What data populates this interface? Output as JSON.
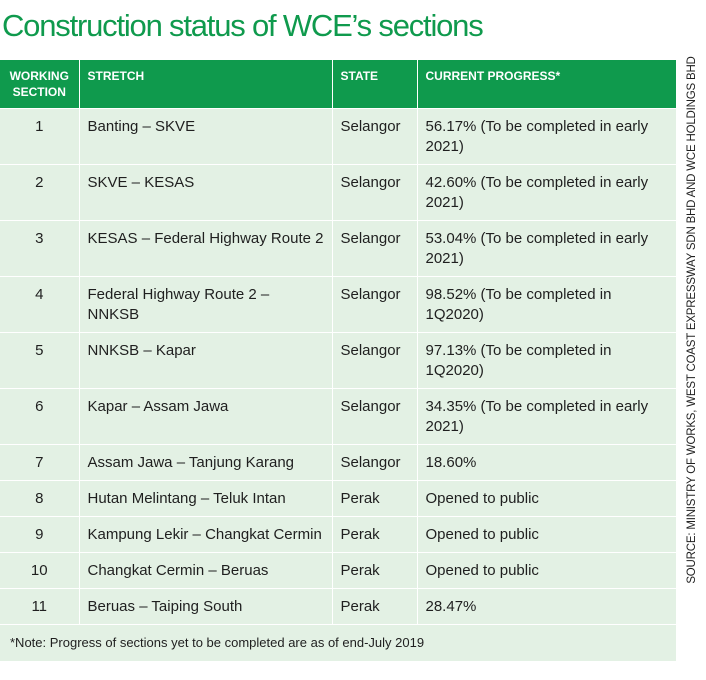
{
  "title": "Construction status of WCE’s sections",
  "headers": {
    "section": "WORKING SECTION",
    "stretch": "STRETCH",
    "state": "STATE",
    "progress": "CURRENT PROGRESS*"
  },
  "rows": [
    {
      "section": "1",
      "stretch": "Banting – SKVE",
      "state": "Selangor",
      "progress": "56.17% (To be completed in early 2021)"
    },
    {
      "section": "2",
      "stretch": "SKVE – KESAS",
      "state": "Selangor",
      "progress": "42.60% (To be completed in early 2021)"
    },
    {
      "section": "3",
      "stretch": "KESAS – Federal Highway Route 2",
      "state": "Selangor",
      "progress": "53.04% (To be completed in early 2021)"
    },
    {
      "section": "4",
      "stretch": "Federal Highway Route 2 – NNKSB",
      "state": "Selangor",
      "progress": "98.52% (To be completed in 1Q2020)"
    },
    {
      "section": "5",
      "stretch": "NNKSB – Kapar",
      "state": "Selangor",
      "progress": "97.13% (To be completed in 1Q2020)"
    },
    {
      "section": "6",
      "stretch": "Kapar – Assam Jawa",
      "state": "Selangor",
      "progress": "34.35% (To be completed in early 2021)"
    },
    {
      "section": "7",
      "stretch": "Assam Jawa – Tanjung Karang",
      "state": "Selangor",
      "progress": "18.60%"
    },
    {
      "section": "8",
      "stretch": "Hutan Melintang – Teluk Intan",
      "state": "Perak",
      "progress": "Opened to public"
    },
    {
      "section": "9",
      "stretch": "Kampung Lekir – Changkat Cermin",
      "state": "Perak",
      "progress": "Opened to public"
    },
    {
      "section": "10",
      "stretch": "Changkat Cermin – Beruas",
      "state": "Perak",
      "progress": "Opened to public"
    },
    {
      "section": "11",
      "stretch": "Beruas – Taiping South",
      "state": "Perak",
      "progress": "28.47%"
    }
  ],
  "note": "*Note: Progress of sections yet to be completed are as of end-July 2019",
  "source": "SOURCE: MINISTRY OF WORKS, WEST COAST EXPRESSWAY SDN BHD AND WCE HOLDINGS BHD",
  "colors": {
    "brand_green": "#0f9a4d",
    "row_bg": "#e3f1e4"
  }
}
